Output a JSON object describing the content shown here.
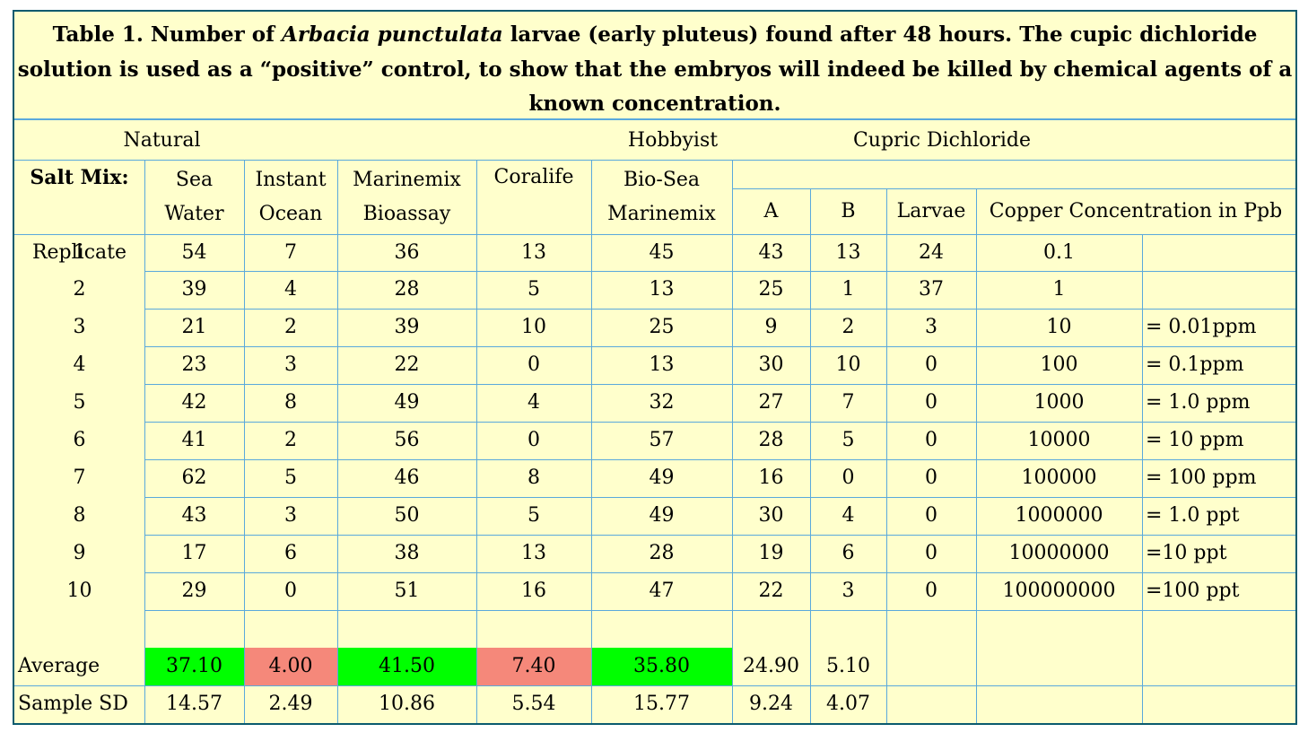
{
  "caption": {
    "prefix": "Table 1.  Number of ",
    "species": "Arbacia punctulata",
    "suffix": " larvae (early pluteus) found after 48 hours.  The cupic dichloride solution is used as a “positive” control, to show that the embryos will indeed be killed by chemical agents of a known concentration."
  },
  "groups": {
    "natural": "Natural",
    "hobbyist": "Hobbyist",
    "cupric": "Cupric Dichloride"
  },
  "headers": {
    "salt_mix": "Salt Mix:",
    "sea_water": [
      "Sea",
      "Water"
    ],
    "instant_ocean": [
      "Instant",
      "Ocean"
    ],
    "marinemix": [
      "Marinemix",
      "Bioassay"
    ],
    "coralife": "Coralife",
    "bio_sea": [
      "Bio-Sea",
      "Marinemix"
    ],
    "a": "A",
    "b": "B",
    "larvae": "Larvae",
    "copper": "Copper Concentration in Ppb",
    "replicate": "Replicate"
  },
  "rows": [
    [
      "1",
      "54",
      "7",
      "36",
      "13",
      "45",
      "43",
      "13",
      "24",
      "0.1",
      ""
    ],
    [
      "2",
      "39",
      "4",
      "28",
      "5",
      "13",
      "25",
      "1",
      "37",
      "1",
      ""
    ],
    [
      "3",
      "21",
      "2",
      "39",
      "10",
      "25",
      "9",
      "2",
      "3",
      "10",
      "= 0.01ppm"
    ],
    [
      "4",
      "23",
      "3",
      "22",
      "0",
      "13",
      "30",
      "10",
      "0",
      "100",
      "= 0.1ppm"
    ],
    [
      "5",
      "42",
      "8",
      "49",
      "4",
      "32",
      "27",
      "7",
      "0",
      "1000",
      "= 1.0 ppm"
    ],
    [
      "6",
      "41",
      "2",
      "56",
      "0",
      "57",
      "28",
      "5",
      "0",
      "10000",
      "= 10 ppm"
    ],
    [
      "7",
      "62",
      "5",
      "46",
      "8",
      "49",
      "16",
      "0",
      "0",
      "100000",
      "= 100 ppm"
    ],
    [
      "8",
      "43",
      "3",
      "50",
      "5",
      "49",
      "30",
      "4",
      "0",
      "1000000",
      "= 1.0 ppt"
    ],
    [
      "9",
      "17",
      "6",
      "38",
      "13",
      "28",
      "19",
      "6",
      "0",
      "10000000",
      "=10 ppt"
    ],
    [
      "10",
      "29",
      "0",
      "51",
      "16",
      "47",
      "22",
      "3",
      "0",
      "100000000",
      "=100 ppt"
    ]
  ],
  "average": {
    "label": "Average",
    "values": [
      "37.10",
      "4.00",
      "41.50",
      "7.40",
      "35.80",
      "24.90",
      "5.10"
    ]
  },
  "sd": {
    "label": "Sample SD",
    "values": [
      "14.57",
      "2.49",
      "10.86",
      "5.54",
      "15.77",
      "9.24",
      "4.07"
    ]
  },
  "colors": {
    "background": "#ffffcc",
    "grid": "#5aa9dc",
    "border": "#0b5b6e",
    "highlight_green": "#00ff00",
    "highlight_salmon": "#f5887a"
  }
}
